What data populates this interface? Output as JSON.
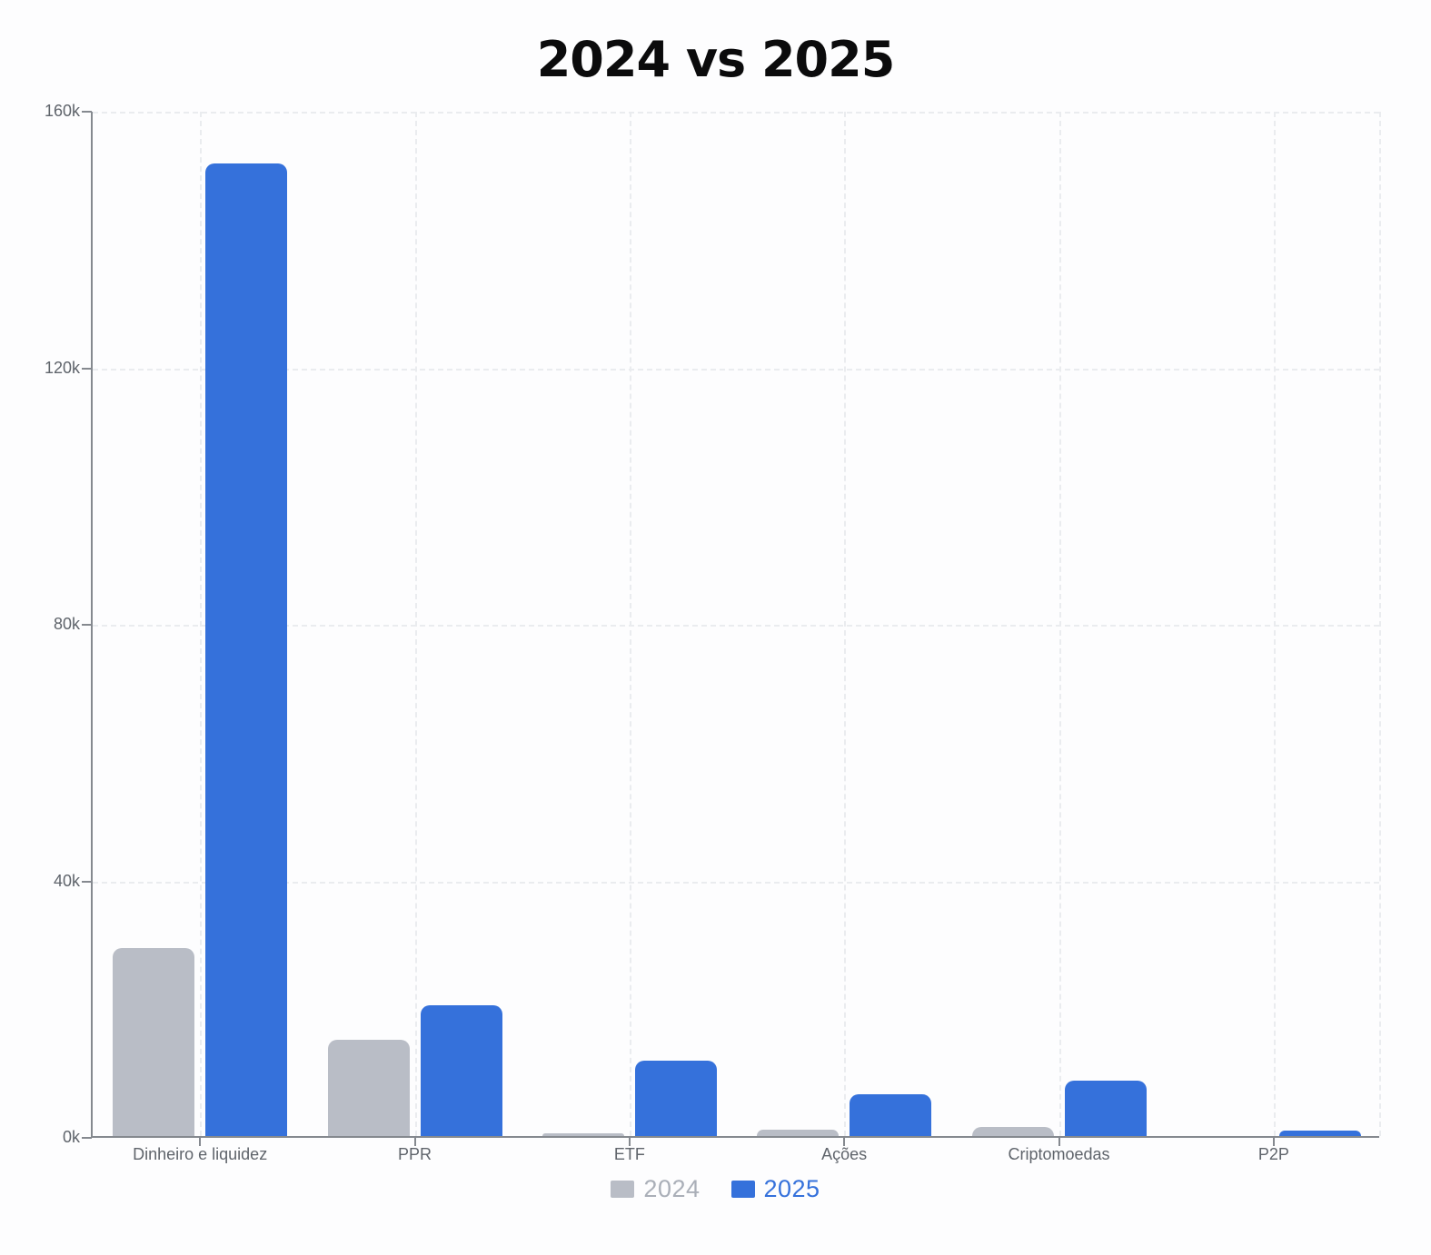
{
  "chart_data": {
    "type": "bar",
    "title": "2024 vs 2025",
    "categories": [
      "Dinheiro e liquidez",
      "PPR",
      "ETF",
      "Ações",
      "Criptomoedas",
      "P2P"
    ],
    "series": [
      {
        "name": "2024",
        "color": "#b9bdc6",
        "label_color": "#aaafb8",
        "values": [
          29300,
          15000,
          400,
          1000,
          1400,
          0
        ]
      },
      {
        "name": "2025",
        "color": "#3571db",
        "label_color": "#3571db",
        "values": [
          151700,
          20400,
          11700,
          6500,
          8600,
          800
        ]
      }
    ],
    "ylim": [
      0,
      160000
    ],
    "y_ticks": [
      {
        "value": 0,
        "label": "0k"
      },
      {
        "value": 40000,
        "label": "40k"
      },
      {
        "value": 80000,
        "label": "80k"
      },
      {
        "value": 120000,
        "label": "120k"
      },
      {
        "value": 160000,
        "label": "160k"
      }
    ],
    "grid": "dashed",
    "legend_position": "bottom",
    "axis_color": "#85898f",
    "grid_color": "#eaecef",
    "tick_label_color": "#5f646b",
    "title_color": "#0b0b0c"
  }
}
